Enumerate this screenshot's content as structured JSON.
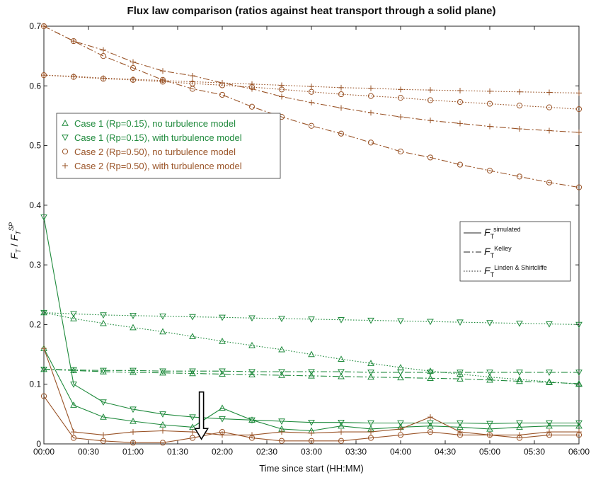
{
  "chart_data": {
    "type": "line",
    "title": "Flux law comparison (ratios against heat transport through a solid plane)",
    "xlabel": "Time since start (HH:MM)",
    "ylabel": [
      {
        "text": "F",
        "italic": true
      },
      {
        "text": "T",
        "italic": true,
        "shift": "sub"
      },
      {
        "text": " / "
      },
      {
        "text": "F",
        "italic": true
      },
      {
        "text": "T",
        "italic": true,
        "shift": "sub"
      },
      {
        "text": "SP",
        "italic": true,
        "shift": "sup"
      }
    ],
    "x": [
      0,
      20,
      40,
      60,
      80,
      100,
      120,
      140,
      160,
      180,
      200,
      220,
      240,
      260,
      280,
      300,
      320,
      340,
      360
    ],
    "xlim": [
      0,
      360
    ],
    "xticks": [
      {
        "value": 0,
        "label": "00:00"
      },
      {
        "value": 30,
        "label": "00:30"
      },
      {
        "value": 60,
        "label": "01:00"
      },
      {
        "value": 90,
        "label": "01:30"
      },
      {
        "value": 120,
        "label": "02:00"
      },
      {
        "value": 150,
        "label": "02:30"
      },
      {
        "value": 180,
        "label": "03:00"
      },
      {
        "value": 210,
        "label": "03:30"
      },
      {
        "value": 240,
        "label": "04:00"
      },
      {
        "value": 270,
        "label": "04:30"
      },
      {
        "value": 300,
        "label": "05:00"
      },
      {
        "value": 330,
        "label": "05:30"
      },
      {
        "value": 360,
        "label": "06:00"
      }
    ],
    "ylim": [
      0,
      0.7
    ],
    "yticks": [
      0,
      0.1,
      0.2,
      0.3,
      0.4,
      0.5,
      0.6,
      0.7
    ],
    "grid": false,
    "cases": [
      {
        "name": "Case 1 (Rp=0.15), no turbulence model",
        "color": "#1f8a3c",
        "marker": "triangle-up"
      },
      {
        "name": "Case 1 (Rp=0.15), with turbulence model",
        "color": "#1f8a3c",
        "marker": "triangle-down"
      },
      {
        "name": "Case 2 (Rp=0.50), no turbulence model",
        "color": "#9a5428",
        "marker": "circle"
      },
      {
        "name": "Case 2 (Rp=0.50), with turbulence model",
        "color": "#9a5428",
        "marker": "plus"
      }
    ],
    "laws": [
      {
        "dash": "solid",
        "label": [
          {
            "text": "F",
            "italic": true
          },
          {
            "text": "T",
            "shift": "sub"
          },
          {
            "text": "simulated",
            "shift": "sup"
          }
        ]
      },
      {
        "dash": "dashdot",
        "label": [
          {
            "text": "F",
            "italic": true
          },
          {
            "text": "T",
            "shift": "sub"
          },
          {
            "text": "Kelley",
            "shift": "sup"
          }
        ]
      },
      {
        "dash": "dotted",
        "label": [
          {
            "text": "F",
            "italic": true
          },
          {
            "text": "T",
            "shift": "sub"
          },
          {
            "text": "Linden & Shirtcliffe",
            "shift": "sup"
          }
        ]
      }
    ],
    "series": [
      {
        "case": 2,
        "law": 1,
        "values": [
          0.7,
          0.675,
          0.65,
          0.63,
          0.61,
          0.595,
          0.585,
          0.565,
          0.548,
          0.533,
          0.52,
          0.505,
          0.49,
          0.48,
          0.468,
          0.458,
          0.448,
          0.438,
          0.43
        ]
      },
      {
        "case": 3,
        "law": 1,
        "values": [
          0.7,
          0.675,
          0.66,
          0.64,
          0.625,
          0.617,
          0.605,
          0.595,
          0.582,
          0.572,
          0.563,
          0.555,
          0.548,
          0.542,
          0.537,
          0.532,
          0.528,
          0.525,
          0.522
        ]
      },
      {
        "case": 2,
        "law": 2,
        "values": [
          0.618,
          0.615,
          0.612,
          0.61,
          0.607,
          0.604,
          0.601,
          0.598,
          0.594,
          0.59,
          0.586,
          0.583,
          0.58,
          0.576,
          0.573,
          0.57,
          0.567,
          0.564,
          0.561
        ]
      },
      {
        "case": 3,
        "law": 2,
        "values": [
          0.618,
          0.616,
          0.613,
          0.611,
          0.609,
          0.607,
          0.605,
          0.603,
          0.601,
          0.599,
          0.597,
          0.596,
          0.594,
          0.593,
          0.592,
          0.591,
          0.59,
          0.589,
          0.588
        ]
      },
      {
        "case": 0,
        "law": 2,
        "values": [
          0.22,
          0.21,
          0.202,
          0.195,
          0.188,
          0.18,
          0.172,
          0.165,
          0.158,
          0.15,
          0.142,
          0.135,
          0.128,
          0.122,
          0.117,
          0.112,
          0.108,
          0.104,
          0.1
        ]
      },
      {
        "case": 1,
        "law": 2,
        "values": [
          0.22,
          0.218,
          0.216,
          0.215,
          0.214,
          0.213,
          0.212,
          0.211,
          0.21,
          0.209,
          0.208,
          0.207,
          0.206,
          0.205,
          0.204,
          0.203,
          0.202,
          0.201,
          0.2
        ]
      },
      {
        "case": 0,
        "law": 1,
        "values": [
          0.125,
          0.123,
          0.121,
          0.12,
          0.119,
          0.118,
          0.117,
          0.116,
          0.115,
          0.114,
          0.113,
          0.112,
          0.111,
          0.11,
          0.109,
          0.107,
          0.105,
          0.103,
          0.101
        ]
      },
      {
        "case": 1,
        "law": 1,
        "values": [
          0.125,
          0.124,
          0.123,
          0.123,
          0.122,
          0.122,
          0.122,
          0.121,
          0.121,
          0.121,
          0.121,
          0.12,
          0.12,
          0.12,
          0.12,
          0.12,
          0.12,
          0.12,
          0.12
        ]
      },
      {
        "case": 0,
        "law": 0,
        "values": [
          0.16,
          0.065,
          0.045,
          0.038,
          0.032,
          0.028,
          0.06,
          0.04,
          0.025,
          0.022,
          0.03,
          0.025,
          0.028,
          0.03,
          0.028,
          0.025,
          0.028,
          0.03,
          0.03
        ]
      },
      {
        "case": 1,
        "law": 0,
        "values": [
          0.38,
          0.1,
          0.07,
          0.058,
          0.05,
          0.045,
          0.042,
          0.04,
          0.038,
          0.036,
          0.036,
          0.035,
          0.035,
          0.035,
          0.035,
          0.034,
          0.035,
          0.035,
          0.035
        ]
      },
      {
        "case": 2,
        "law": 0,
        "values": [
          0.08,
          0.01,
          0.005,
          0.002,
          0.002,
          0.01,
          0.02,
          0.01,
          0.005,
          0.005,
          0.005,
          0.01,
          0.015,
          0.02,
          0.015,
          0.015,
          0.01,
          0.015,
          0.015
        ]
      },
      {
        "case": 3,
        "law": 0,
        "values": [
          0.16,
          0.02,
          0.015,
          0.02,
          0.022,
          0.02,
          0.015,
          0.015,
          0.02,
          0.018,
          0.02,
          0.02,
          0.025,
          0.045,
          0.02,
          0.015,
          0.015,
          0.02,
          0.02
        ]
      }
    ],
    "annotations": [
      {
        "type": "arrow",
        "x": 106,
        "y_from": 0.087,
        "y_to": 0.008
      }
    ]
  }
}
